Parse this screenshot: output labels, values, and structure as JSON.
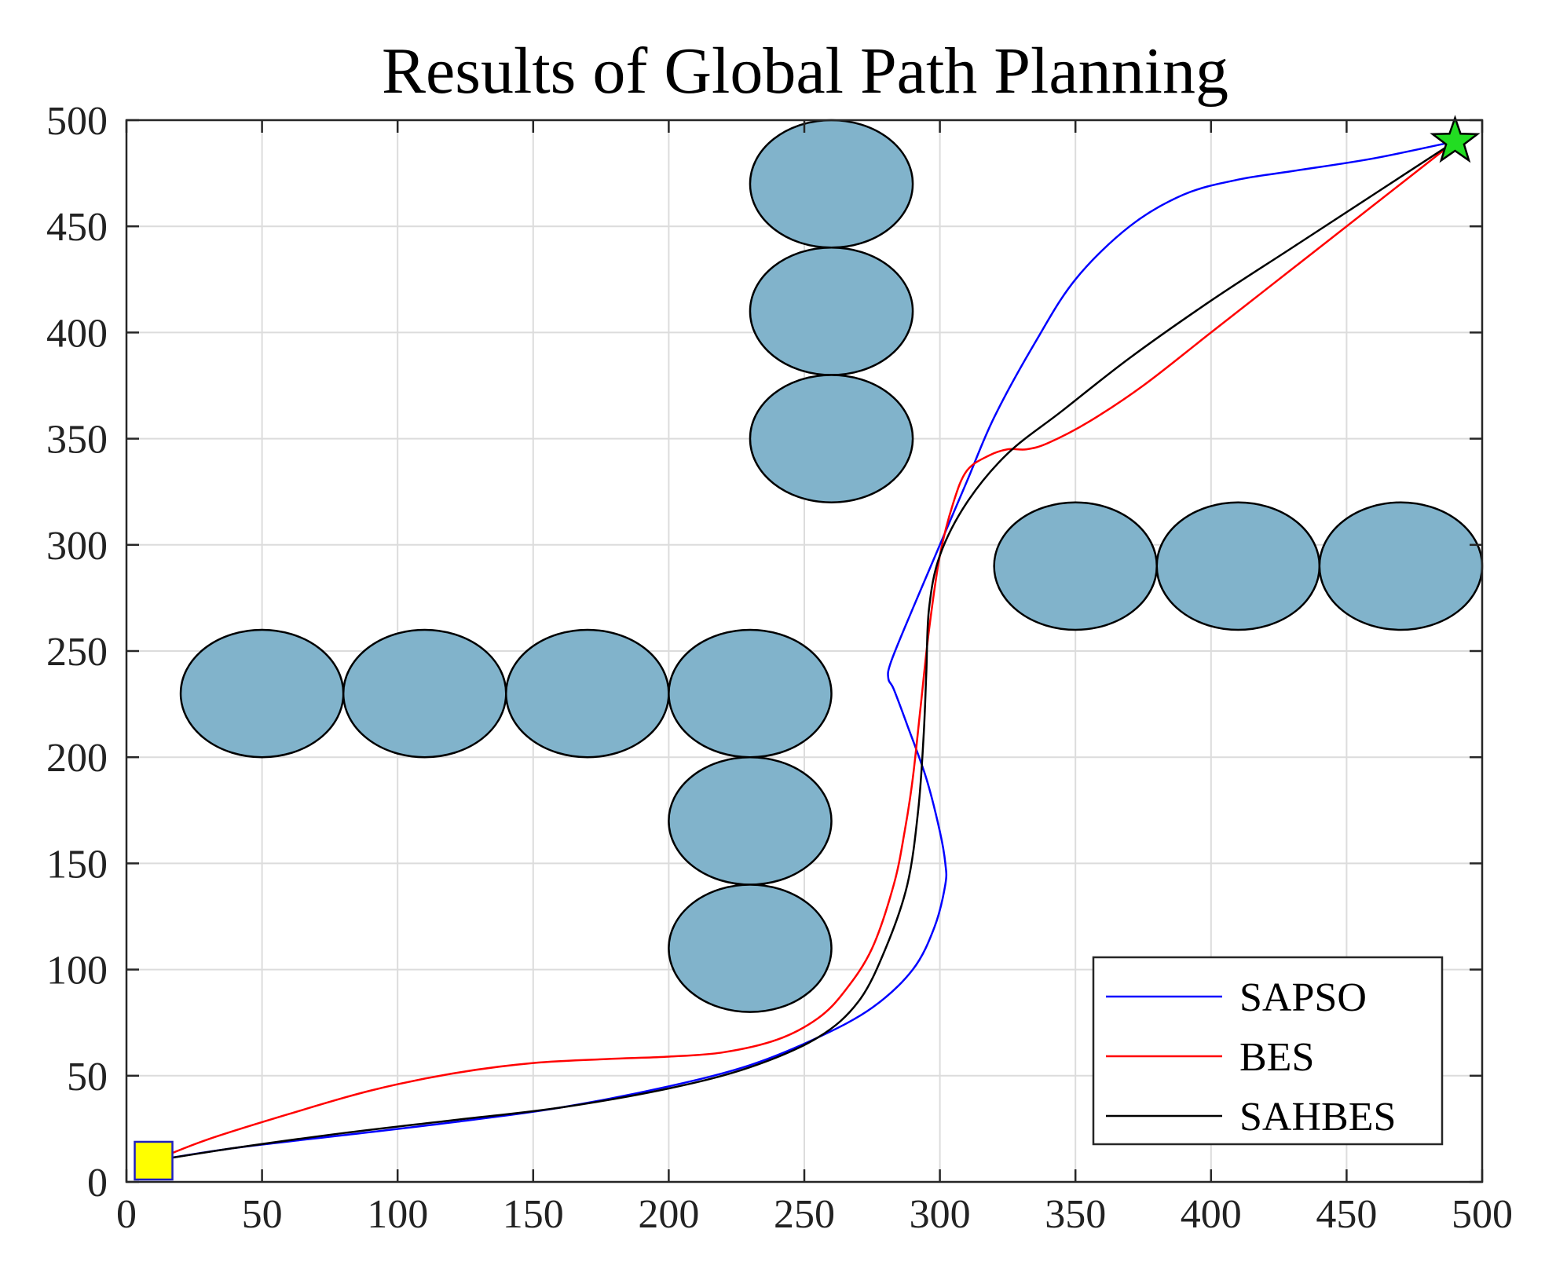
{
  "chart_data": {
    "type": "line",
    "title": "Results of Global Path Planning",
    "xlabel": "",
    "ylabel": "",
    "xlim": [
      0,
      500
    ],
    "ylim": [
      0,
      500
    ],
    "xticks": [
      0,
      50,
      100,
      150,
      200,
      250,
      300,
      350,
      400,
      450,
      500
    ],
    "yticks": [
      0,
      50,
      100,
      150,
      200,
      250,
      300,
      350,
      400,
      450,
      500
    ],
    "grid": true,
    "legend_position": "bottom-right",
    "obstacle_color": "#81b3cb",
    "obstacles": [
      {
        "cx": 260,
        "cy": 470,
        "rx": 30,
        "ry": 30
      },
      {
        "cx": 260,
        "cy": 410,
        "rx": 30,
        "ry": 30
      },
      {
        "cx": 260,
        "cy": 350,
        "rx": 30,
        "ry": 30
      },
      {
        "cx": 350,
        "cy": 290,
        "rx": 30,
        "ry": 30
      },
      {
        "cx": 410,
        "cy": 290,
        "rx": 30,
        "ry": 30
      },
      {
        "cx": 470,
        "cy": 290,
        "rx": 30,
        "ry": 30
      },
      {
        "cx": 50,
        "cy": 230,
        "rx": 30,
        "ry": 30
      },
      {
        "cx": 110,
        "cy": 230,
        "rx": 30,
        "ry": 30
      },
      {
        "cx": 170,
        "cy": 230,
        "rx": 30,
        "ry": 30
      },
      {
        "cx": 230,
        "cy": 230,
        "rx": 30,
        "ry": 30
      },
      {
        "cx": 230,
        "cy": 170,
        "rx": 30,
        "ry": 30
      },
      {
        "cx": 230,
        "cy": 110,
        "rx": 30,
        "ry": 30
      }
    ],
    "start": {
      "x": 10,
      "y": 10,
      "color": "#ffff00",
      "edge_color": "#1f1fbf"
    },
    "goal": {
      "x": 490,
      "y": 490,
      "color": "#22dd22"
    },
    "series": [
      {
        "name": "SAPSO",
        "color": "#0000ff",
        "x": [
          10,
          40,
          80,
          120,
          160,
          200,
          230,
          255,
          275,
          290,
          298,
          302,
          302,
          300,
          295,
          288,
          283,
          281,
          282,
          290,
          300,
          310,
          320,
          335,
          350,
          370,
          390,
          410,
          430,
          460,
          490
        ],
        "y": [
          10,
          16,
          22,
          28,
          35,
          45,
          55,
          68,
          82,
          100,
          120,
          140,
          150,
          165,
          190,
          215,
          232,
          237,
          245,
          270,
          300,
          330,
          360,
          395,
          425,
          450,
          465,
          472,
          476,
          482,
          490
        ]
      },
      {
        "name": "BES",
        "color": "#ff0000",
        "x": [
          10,
          30,
          60,
          90,
          120,
          150,
          180,
          200,
          220,
          240,
          255,
          265,
          275,
          283,
          287,
          290,
          293,
          296,
          300,
          305,
          310,
          318,
          325,
          332,
          340,
          355,
          375,
          400,
          430,
          460,
          490
        ],
        "y": [
          10,
          20,
          32,
          43,
          51,
          56,
          58,
          59,
          61,
          67,
          77,
          90,
          110,
          140,
          165,
          190,
          225,
          260,
          295,
          320,
          335,
          342,
          345,
          345,
          348,
          358,
          375,
          400,
          430,
          460,
          490
        ]
      },
      {
        "name": "SAHBES",
        "color": "#000000",
        "x": [
          10,
          40,
          80,
          120,
          160,
          200,
          230,
          255,
          270,
          280,
          288,
          292,
          294,
          295,
          296,
          300,
          310,
          325,
          345,
          370,
          400,
          430,
          460,
          490
        ],
        "y": [
          10,
          16,
          23,
          29,
          35,
          44,
          54,
          68,
          85,
          110,
          140,
          175,
          210,
          240,
          270,
          295,
          320,
          343,
          363,
          388,
          415,
          440,
          465,
          490
        ]
      }
    ]
  }
}
